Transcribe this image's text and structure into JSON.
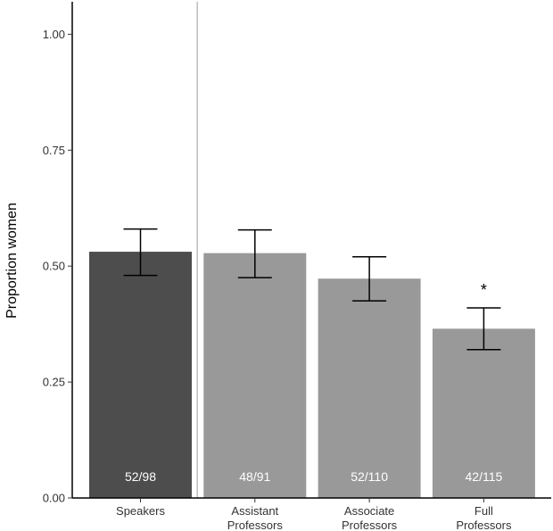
{
  "chart_data": {
    "type": "bar",
    "title": "",
    "xlabel": "",
    "ylabel": "Proportion women",
    "ylim": [
      0,
      1.07
    ],
    "yticks": [
      "0.00",
      "0.25",
      "0.50",
      "0.75",
      "1.00"
    ],
    "ytick_values": [
      0,
      0.25,
      0.5,
      0.75,
      1.0
    ],
    "grid": false,
    "categories": [
      [
        "Speakers"
      ],
      [
        "Assistant",
        "Professors"
      ],
      [
        "Associate",
        "Professors"
      ],
      [
        "Full",
        "Professors"
      ]
    ],
    "values": [
      0.531,
      0.528,
      0.473,
      0.365
    ],
    "error_low": [
      0.48,
      0.475,
      0.425,
      0.32
    ],
    "error_high": [
      0.58,
      0.578,
      0.52,
      0.41
    ],
    "counts": [
      "52/98",
      "48/91",
      "52/110",
      "42/115"
    ],
    "bar_colors": [
      "#4d4d4d",
      "#999999",
      "#999999",
      "#999999"
    ],
    "significance": [
      "",
      "",
      "",
      "*"
    ],
    "separator_after_index": 0
  }
}
